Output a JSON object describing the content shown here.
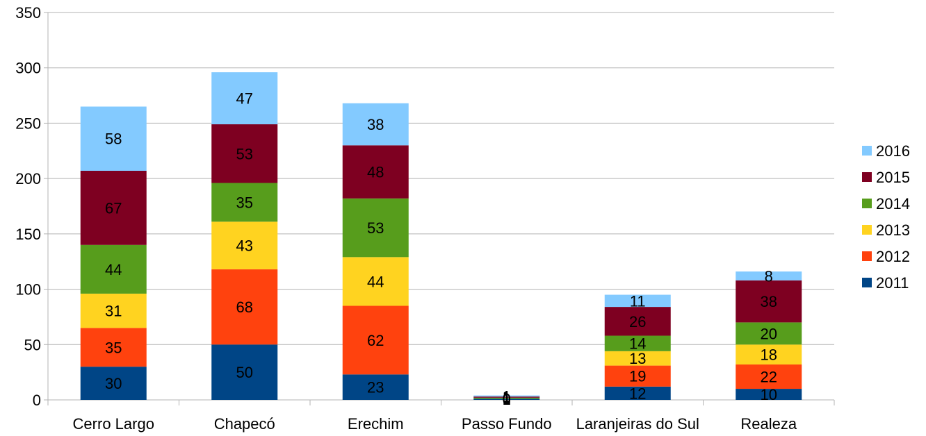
{
  "chart_data": {
    "type": "bar",
    "stacked": true,
    "categories": [
      "Cerro Largo",
      "Chapecó",
      "Erechim",
      "Passo Fundo",
      "Laranjeiras do Sul",
      "Realeza"
    ],
    "series": [
      {
        "name": "2011",
        "color": "#004586",
        "values": [
          30,
          50,
          23,
          1,
          12,
          10
        ]
      },
      {
        "name": "2012",
        "color": "#ff420e",
        "values": [
          35,
          68,
          62,
          0,
          19,
          22
        ]
      },
      {
        "name": "2013",
        "color": "#ffd320",
        "values": [
          31,
          43,
          44,
          0,
          13,
          18
        ]
      },
      {
        "name": "2014",
        "color": "#579d1c",
        "values": [
          44,
          35,
          53,
          1,
          14,
          20
        ]
      },
      {
        "name": "2015",
        "color": "#7e0021",
        "values": [
          67,
          53,
          48,
          1,
          26,
          38
        ]
      },
      {
        "name": "2016",
        "color": "#83caff",
        "values": [
          58,
          47,
          38,
          1,
          11,
          8
        ]
      }
    ],
    "ylim": [
      0,
      350
    ],
    "yticks": [
      0,
      50,
      100,
      150,
      200,
      250,
      300,
      350
    ],
    "grid": true,
    "legend_position": "right",
    "data_labels": true
  }
}
